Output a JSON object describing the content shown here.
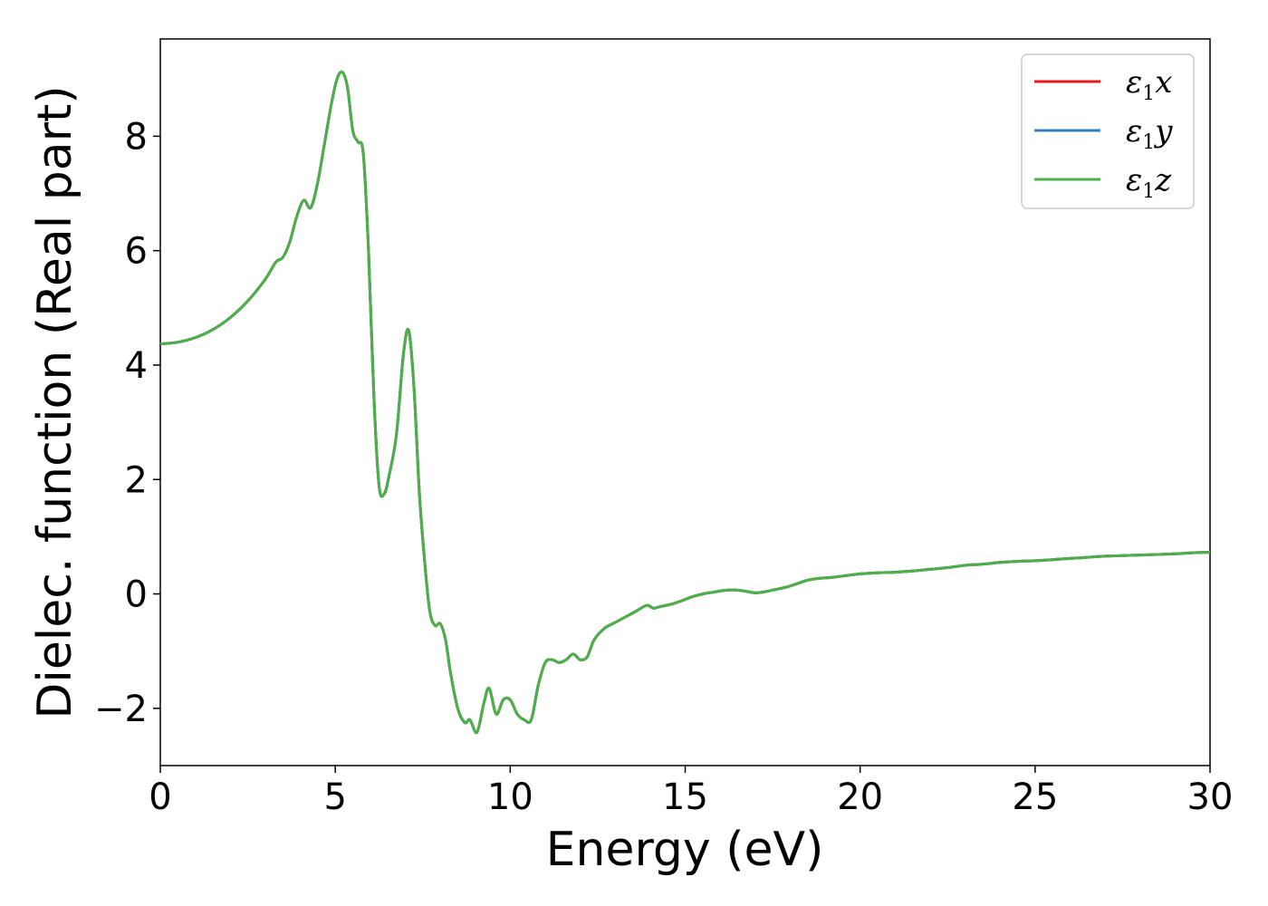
{
  "chart_data": {
    "type": "line",
    "xlabel": "Energy (eV)",
    "ylabel": "Dielec. function (Real part)",
    "xlim": [
      0,
      30
    ],
    "ylim": [
      -3,
      9.7
    ],
    "xticks": [
      0,
      5,
      10,
      15,
      20,
      25,
      30
    ],
    "xtick_labels": [
      "0",
      "5",
      "10",
      "15",
      "20",
      "25",
      "30"
    ],
    "yticks": [
      -2,
      0,
      2,
      4,
      6,
      8
    ],
    "ytick_labels": [
      "−2",
      "0",
      "2",
      "4",
      "6",
      "8"
    ],
    "grid": false,
    "legend_position": "top-right",
    "series": [
      {
        "legend_symbol": "ε",
        "legend_sub": "1",
        "legend_var": "x",
        "color": "#e41a1c"
      },
      {
        "legend_symbol": "ε",
        "legend_sub": "1",
        "legend_var": "y",
        "color": "#377eb8"
      },
      {
        "legend_symbol": "ε",
        "legend_sub": "1",
        "legend_var": "z",
        "color": "#4daf4a"
      }
    ],
    "x": [
      0,
      0.5,
      1,
      1.5,
      2,
      2.5,
      3,
      3.3,
      3.5,
      3.7,
      3.9,
      4.1,
      4.3,
      4.5,
      4.7,
      4.9,
      5.05,
      5.2,
      5.35,
      5.5,
      5.65,
      5.8,
      5.95,
      6.1,
      6.25,
      6.4,
      6.55,
      6.75,
      6.95,
      7.1,
      7.25,
      7.4,
      7.55,
      7.7,
      7.85,
      8.0,
      8.15,
      8.3,
      8.5,
      8.7,
      8.85,
      9.05,
      9.25,
      9.4,
      9.6,
      9.8,
      10.0,
      10.2,
      10.4,
      10.6,
      10.8,
      11.0,
      11.2,
      11.4,
      11.6,
      11.8,
      12.0,
      12.2,
      12.4,
      12.7,
      13.0,
      13.3,
      13.6,
      13.9,
      14.1,
      14.3,
      14.6,
      14.9,
      15.2,
      15.5,
      15.8,
      16.1,
      16.4,
      16.7,
      17.0,
      17.3,
      17.6,
      17.9,
      18.2,
      18.5,
      18.8,
      19.2,
      19.6,
      20.0,
      20.5,
      21.0,
      21.5,
      22.0,
      22.5,
      23.0,
      23.5,
      24.0,
      24.5,
      25.0,
      25.5,
      26.0,
      26.5,
      27.0,
      27.5,
      28.0,
      28.5,
      29.0,
      29.5,
      30.0
    ],
    "values": [
      4.37,
      4.4,
      4.48,
      4.62,
      4.83,
      5.12,
      5.5,
      5.8,
      5.88,
      6.15,
      6.6,
      6.88,
      6.75,
      7.2,
      7.9,
      8.6,
      9.0,
      9.12,
      8.85,
      8.1,
      7.9,
      7.7,
      6.0,
      3.5,
      1.9,
      1.75,
      2.1,
      2.8,
      4.2,
      4.6,
      3.6,
      1.8,
      0.6,
      -0.3,
      -0.55,
      -0.52,
      -0.8,
      -1.4,
      -2.0,
      -2.25,
      -2.2,
      -2.42,
      -1.9,
      -1.65,
      -2.1,
      -1.85,
      -1.85,
      -2.1,
      -2.2,
      -2.2,
      -1.6,
      -1.2,
      -1.15,
      -1.2,
      -1.15,
      -1.05,
      -1.15,
      -1.1,
      -0.8,
      -0.6,
      -0.5,
      -0.4,
      -0.3,
      -0.2,
      -0.25,
      -0.22,
      -0.18,
      -0.12,
      -0.05,
      0.0,
      0.03,
      0.06,
      0.07,
      0.05,
      0.02,
      0.04,
      0.08,
      0.12,
      0.18,
      0.24,
      0.27,
      0.29,
      0.32,
      0.35,
      0.37,
      0.38,
      0.4,
      0.43,
      0.46,
      0.5,
      0.52,
      0.55,
      0.57,
      0.58,
      0.6,
      0.62,
      0.64,
      0.66,
      0.67,
      0.68,
      0.69,
      0.7,
      0.72,
      0.73
    ]
  }
}
